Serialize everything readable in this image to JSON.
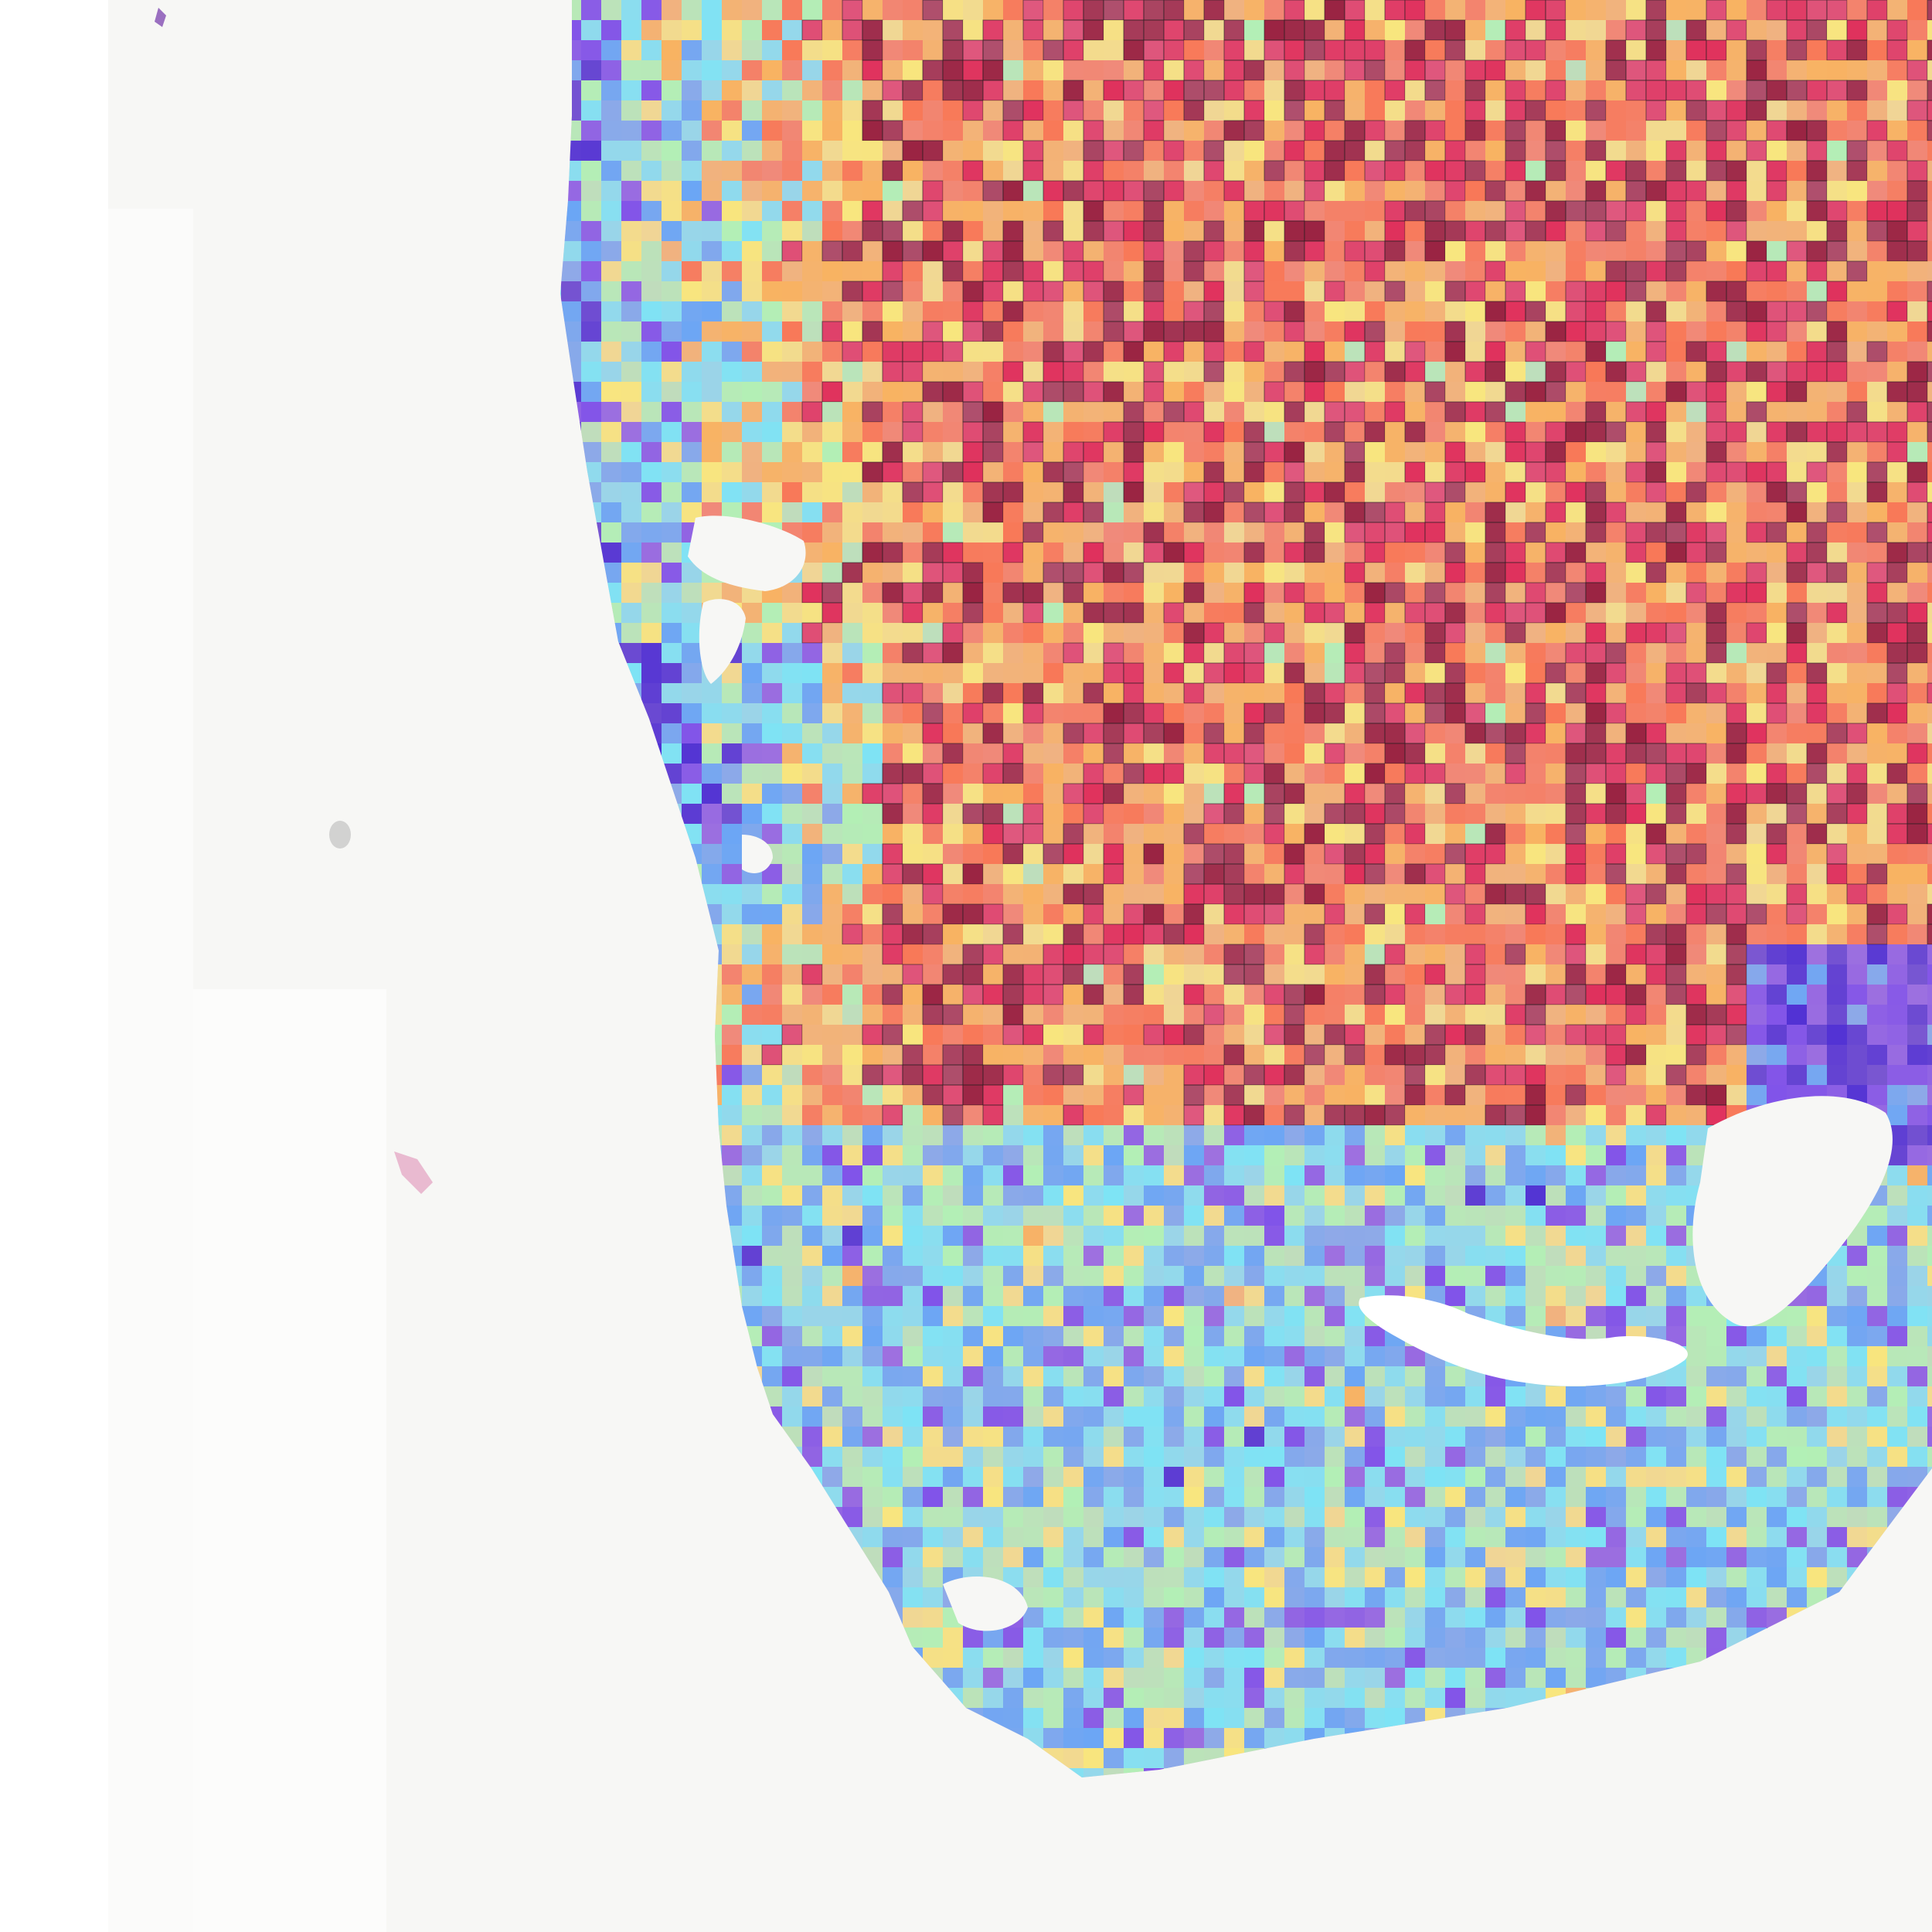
{
  "image": {
    "kind": "whole-slide tissue image with patch-level attention heatmap overlay",
    "background_color": "#f7f7f5"
  },
  "overlay": {
    "colormap": [
      "#2b0fd6",
      "#6a3cf0",
      "#4fa3ff",
      "#66f0ff",
      "#a8ffb0",
      "#fff36a",
      "#ffb347",
      "#ff6a3a",
      "#e01040",
      "#8a0020"
    ],
    "grid_lines": true,
    "opacity": 0.55
  },
  "tissue": {
    "stain_pink": "#d97fa8",
    "stain_purple": "#7d3fb2"
  }
}
